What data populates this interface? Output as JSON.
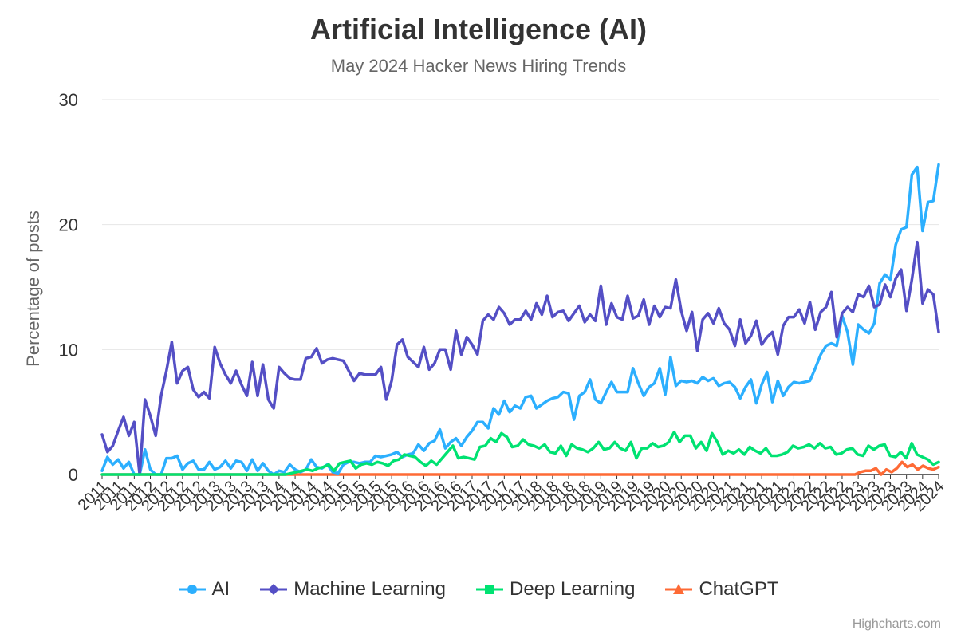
{
  "chart_data": {
    "type": "line",
    "title": "Artificial Intelligence (AI)",
    "subtitle": "May 2024 Hacker News Hiring Trends",
    "ylabel": "Percentage of posts",
    "xlabel": "",
    "ylim": [
      0,
      30
    ],
    "yticks": [
      0,
      10,
      20,
      30
    ],
    "x_ticks": [
      "2011",
      "2011",
      "2011",
      "2012",
      "2012",
      "2012",
      "2012",
      "2013",
      "2013",
      "2013",
      "2013",
      "2014",
      "2014",
      "2014",
      "2014",
      "2015",
      "2015",
      "2015",
      "2015",
      "2016",
      "2016",
      "2016",
      "2016",
      "2017",
      "2017",
      "2017",
      "2017",
      "2018",
      "2018",
      "2018",
      "2018",
      "2019",
      "2019",
      "2019",
      "2019",
      "2020",
      "2020",
      "2020",
      "2020",
      "2021",
      "2021",
      "2021",
      "2021",
      "2022",
      "2022",
      "2022",
      "2022",
      "2023",
      "2023",
      "2023",
      "2023",
      "2024",
      "2024"
    ],
    "grid": true,
    "legend_position": "bottom",
    "series": [
      {
        "name": "AI",
        "color": "#2caffe",
        "marker": "circle",
        "values": [
          0.3,
          1.4,
          0.8,
          1.2,
          0.5,
          1.0,
          0.0,
          0.0,
          2.0,
          0.4,
          0.0,
          0.0,
          1.3,
          1.3,
          1.5,
          0.4,
          0.9,
          1.1,
          0.4,
          0.4,
          1.0,
          0.4,
          0.6,
          1.1,
          0.5,
          1.1,
          1.0,
          0.3,
          1.2,
          0.3,
          0.9,
          0.3,
          0.0,
          0.3,
          0.2,
          0.8,
          0.4,
          0.2,
          0.4,
          1.2,
          0.6,
          0.5,
          0.8,
          0.2,
          0.1,
          0.8,
          1.0,
          1.0,
          0.9,
          1.0,
          1.0,
          1.5,
          1.4,
          1.5,
          1.6,
          1.8,
          1.4,
          1.6,
          1.7,
          2.4,
          1.9,
          2.5,
          2.7,
          3.6,
          2.1,
          2.6,
          2.9,
          2.3,
          3.0,
          3.5,
          4.2,
          4.2,
          3.7,
          5.3,
          4.8,
          5.9,
          5.0,
          5.5,
          5.3,
          6.2,
          6.3,
          5.3,
          5.6,
          5.9,
          6.1,
          6.2,
          6.6,
          6.5,
          4.4,
          6.3,
          6.6,
          7.6,
          6.0,
          5.7,
          6.6,
          7.4,
          6.6,
          6.6,
          6.6,
          8.5,
          7.3,
          6.3,
          7.0,
          7.3,
          8.5,
          6.4,
          9.4,
          7.1,
          7.5,
          7.4,
          7.5,
          7.3,
          7.8,
          7.5,
          7.7,
          7.1,
          7.3,
          7.4,
          7.0,
          6.1,
          7.0,
          7.6,
          5.7,
          7.2,
          8.2,
          5.8,
          7.5,
          6.3,
          7.0,
          7.4,
          7.3,
          7.4,
          7.5,
          8.5,
          9.6,
          10.3,
          10.5,
          10.3,
          12.7,
          11.4,
          8.8,
          12.0,
          11.6,
          11.3,
          12.1,
          15.3,
          16.0,
          15.6,
          18.4,
          19.6,
          19.8,
          24.0,
          24.6,
          19.5,
          21.8,
          21.9,
          24.8
        ]
      },
      {
        "name": "Machine Learning",
        "color": "#544fc5",
        "marker": "diamond",
        "values": [
          3.2,
          1.8,
          2.3,
          3.5,
          4.6,
          3.1,
          4.2,
          0.0,
          6.0,
          4.7,
          3.1,
          6.3,
          8.3,
          10.6,
          7.3,
          8.3,
          8.6,
          6.8,
          6.2,
          6.6,
          6.1,
          10.2,
          8.9,
          8.0,
          7.3,
          8.3,
          7.2,
          6.3,
          9.0,
          6.3,
          8.8,
          6.0,
          5.3,
          8.6,
          8.1,
          7.7,
          7.6,
          7.6,
          9.3,
          9.4,
          10.1,
          8.9,
          9.2,
          9.3,
          9.2,
          9.1,
          8.3,
          7.5,
          8.1,
          8.0,
          8.0,
          8.0,
          8.6,
          6.0,
          7.5,
          10.4,
          10.8,
          9.4,
          9.0,
          8.6,
          10.2,
          8.4,
          8.9,
          10.0,
          10.0,
          8.4,
          11.5,
          9.6,
          11.0,
          10.4,
          9.6,
          12.3,
          12.8,
          12.4,
          13.4,
          12.9,
          12.0,
          12.4,
          12.4,
          13.1,
          12.4,
          13.7,
          12.8,
          14.3,
          12.6,
          13.0,
          13.1,
          12.3,
          12.9,
          13.5,
          12.2,
          12.8,
          12.3,
          15.1,
          12.0,
          13.7,
          12.6,
          12.4,
          14.3,
          12.5,
          12.7,
          14.0,
          12.0,
          13.5,
          12.6,
          13.4,
          13.3,
          15.6,
          13.1,
          11.5,
          13.0,
          9.9,
          12.4,
          12.9,
          12.1,
          13.3,
          12.1,
          11.6,
          10.3,
          12.4,
          10.5,
          11.1,
          12.3,
          10.4,
          11.0,
          11.4,
          9.6,
          11.9,
          12.6,
          12.6,
          13.2,
          12.1,
          13.8,
          11.6,
          13.0,
          13.4,
          14.6,
          11.0,
          12.9,
          13.4,
          13.0,
          14.4,
          14.2,
          15.1,
          13.4,
          13.6,
          15.2,
          14.2,
          15.7,
          16.4,
          13.1,
          15.6,
          18.6,
          13.7,
          14.8,
          14.4,
          11.4
        ]
      },
      {
        "name": "Deep Learning",
        "color": "#00e272",
        "marker": "square",
        "values": [
          0,
          0,
          0,
          0,
          0,
          0,
          0,
          0,
          0,
          0,
          0,
          0,
          0,
          0,
          0,
          0,
          0,
          0,
          0,
          0,
          0,
          0,
          0,
          0,
          0,
          0,
          0,
          0,
          0,
          0,
          0,
          0,
          0,
          0,
          0,
          0.1,
          0.2,
          0.3,
          0.4,
          0.3,
          0.5,
          0.6,
          0.8,
          0.3,
          0.9,
          1.0,
          1.1,
          0.5,
          0.8,
          0.9,
          0.8,
          1.0,
          0.9,
          0.7,
          1.1,
          1.2,
          1.6,
          1.5,
          1.4,
          1.0,
          0.7,
          1.1,
          0.8,
          1.3,
          1.8,
          2.3,
          1.3,
          1.4,
          1.3,
          1.2,
          2.2,
          2.3,
          2.9,
          2.6,
          3.3,
          3.0,
          2.2,
          2.3,
          2.8,
          2.4,
          2.3,
          2.1,
          2.4,
          1.8,
          1.7,
          2.3,
          1.5,
          2.4,
          2.1,
          2.0,
          1.8,
          2.1,
          2.6,
          2.0,
          2.1,
          2.6,
          2.1,
          1.9,
          2.6,
          1.3,
          2.1,
          2.1,
          2.5,
          2.2,
          2.3,
          2.6,
          3.4,
          2.6,
          3.1,
          3.1,
          2.1,
          2.6,
          1.9,
          3.3,
          2.6,
          1.6,
          1.9,
          1.7,
          2.0,
          1.6,
          2.2,
          1.9,
          1.7,
          2.1,
          1.5,
          1.5,
          1.6,
          1.8,
          2.3,
          2.1,
          2.2,
          2.4,
          2.1,
          2.5,
          2.1,
          2.2,
          1.6,
          1.7,
          2.0,
          2.1,
          1.6,
          1.5,
          2.3,
          2.0,
          2.3,
          2.4,
          1.5,
          1.4,
          1.8,
          1.3,
          2.5,
          1.6,
          1.4,
          1.2,
          0.8,
          1.0
        ]
      },
      {
        "name": "ChatGPT",
        "color": "#fe6a35",
        "marker": "triangle",
        "values": [
          0,
          0,
          0,
          0,
          0,
          0,
          0,
          0,
          0,
          0,
          0,
          0,
          0,
          0,
          0,
          0,
          0,
          0,
          0,
          0,
          0,
          0,
          0,
          0,
          0,
          0,
          0,
          0,
          0,
          0,
          0,
          0,
          0,
          0,
          0,
          0,
          0,
          0,
          0,
          0,
          0,
          0,
          0,
          0,
          0,
          0,
          0,
          0,
          0,
          0,
          0,
          0,
          0,
          0,
          0,
          0,
          0,
          0,
          0,
          0,
          0,
          0,
          0,
          0,
          0,
          0,
          0,
          0,
          0,
          0,
          0,
          0,
          0,
          0,
          0,
          0,
          0,
          0,
          0,
          0,
          0,
          0,
          0,
          0,
          0,
          0,
          0,
          0,
          0,
          0,
          0,
          0,
          0,
          0,
          0,
          0,
          0,
          0,
          0,
          0,
          0,
          0,
          0,
          0,
          0,
          0,
          0,
          0,
          0,
          0,
          0,
          0,
          0,
          0,
          0,
          0,
          0,
          0,
          0,
          0,
          0,
          0,
          0,
          0,
          0,
          0,
          0,
          0,
          0,
          0,
          0,
          0,
          0,
          0,
          0,
          0,
          0,
          0,
          0,
          0,
          0,
          0,
          0,
          0,
          0,
          0.2,
          0.3,
          0.3,
          0.5,
          0.0,
          0.4,
          0.2,
          0.5,
          1.0,
          0.6,
          0.8,
          0.4,
          0.7,
          0.5,
          0.4,
          0.6
        ]
      }
    ]
  },
  "credits": "Highcharts.com"
}
